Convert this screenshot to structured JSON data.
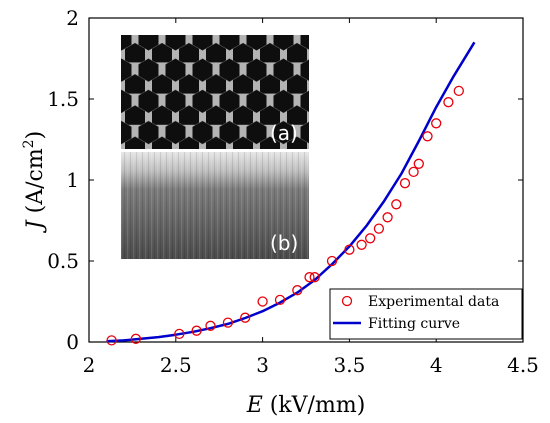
{
  "chart_data": {
    "type": "scatter",
    "xlabel": {
      "italic": "E",
      "rest": " (kV/mm)"
    },
    "ylabel": {
      "italic": "J",
      "rest": " (A/cm",
      "sup": "2",
      "end": ")"
    },
    "xlim": [
      2,
      4.5
    ],
    "ylim": [
      0,
      2
    ],
    "xticks": [
      "2",
      "2.5",
      "3",
      "3.5",
      "4",
      "4.5"
    ],
    "yticks": [
      "0",
      "0.5",
      "1",
      "1.5",
      "2"
    ],
    "grid": false,
    "legend_position": "bottom-right",
    "series": [
      {
        "name": "Experimental data",
        "kind": "markers",
        "marker": "open-circle",
        "color": "#e8000b",
        "x": [
          2.13,
          2.27,
          2.52,
          2.62,
          2.7,
          2.8,
          2.9,
          3.0,
          3.1,
          3.2,
          3.27,
          3.3,
          3.4,
          3.5,
          3.57,
          3.62,
          3.67,
          3.72,
          3.77,
          3.82,
          3.87,
          3.9,
          3.95,
          4.0,
          4.07,
          4.13
        ],
        "y": [
          0.01,
          0.02,
          0.05,
          0.07,
          0.1,
          0.12,
          0.15,
          0.25,
          0.26,
          0.32,
          0.4,
          0.4,
          0.5,
          0.57,
          0.6,
          0.64,
          0.7,
          0.77,
          0.85,
          0.98,
          1.05,
          1.1,
          1.27,
          1.35,
          1.48,
          1.55
        ]
      },
      {
        "name": "Fitting curve",
        "kind": "line",
        "color": "#0000cc",
        "x": [
          2.1,
          2.2,
          2.3,
          2.4,
          2.5,
          2.6,
          2.7,
          2.8,
          2.9,
          3.0,
          3.1,
          3.2,
          3.3,
          3.4,
          3.5,
          3.6,
          3.7,
          3.8,
          3.9,
          4.0,
          4.1,
          4.22
        ],
        "y": [
          0.005,
          0.01,
          0.02,
          0.03,
          0.045,
          0.063,
          0.085,
          0.112,
          0.148,
          0.19,
          0.243,
          0.305,
          0.383,
          0.48,
          0.59,
          0.72,
          0.87,
          1.04,
          1.24,
          1.45,
          1.64,
          1.85
        ]
      }
    ],
    "insets": [
      {
        "label": "(a)",
        "kind": "hexagonal-mesh-micrograph"
      },
      {
        "label": "(b)",
        "kind": "cross-section-micrograph"
      }
    ]
  }
}
